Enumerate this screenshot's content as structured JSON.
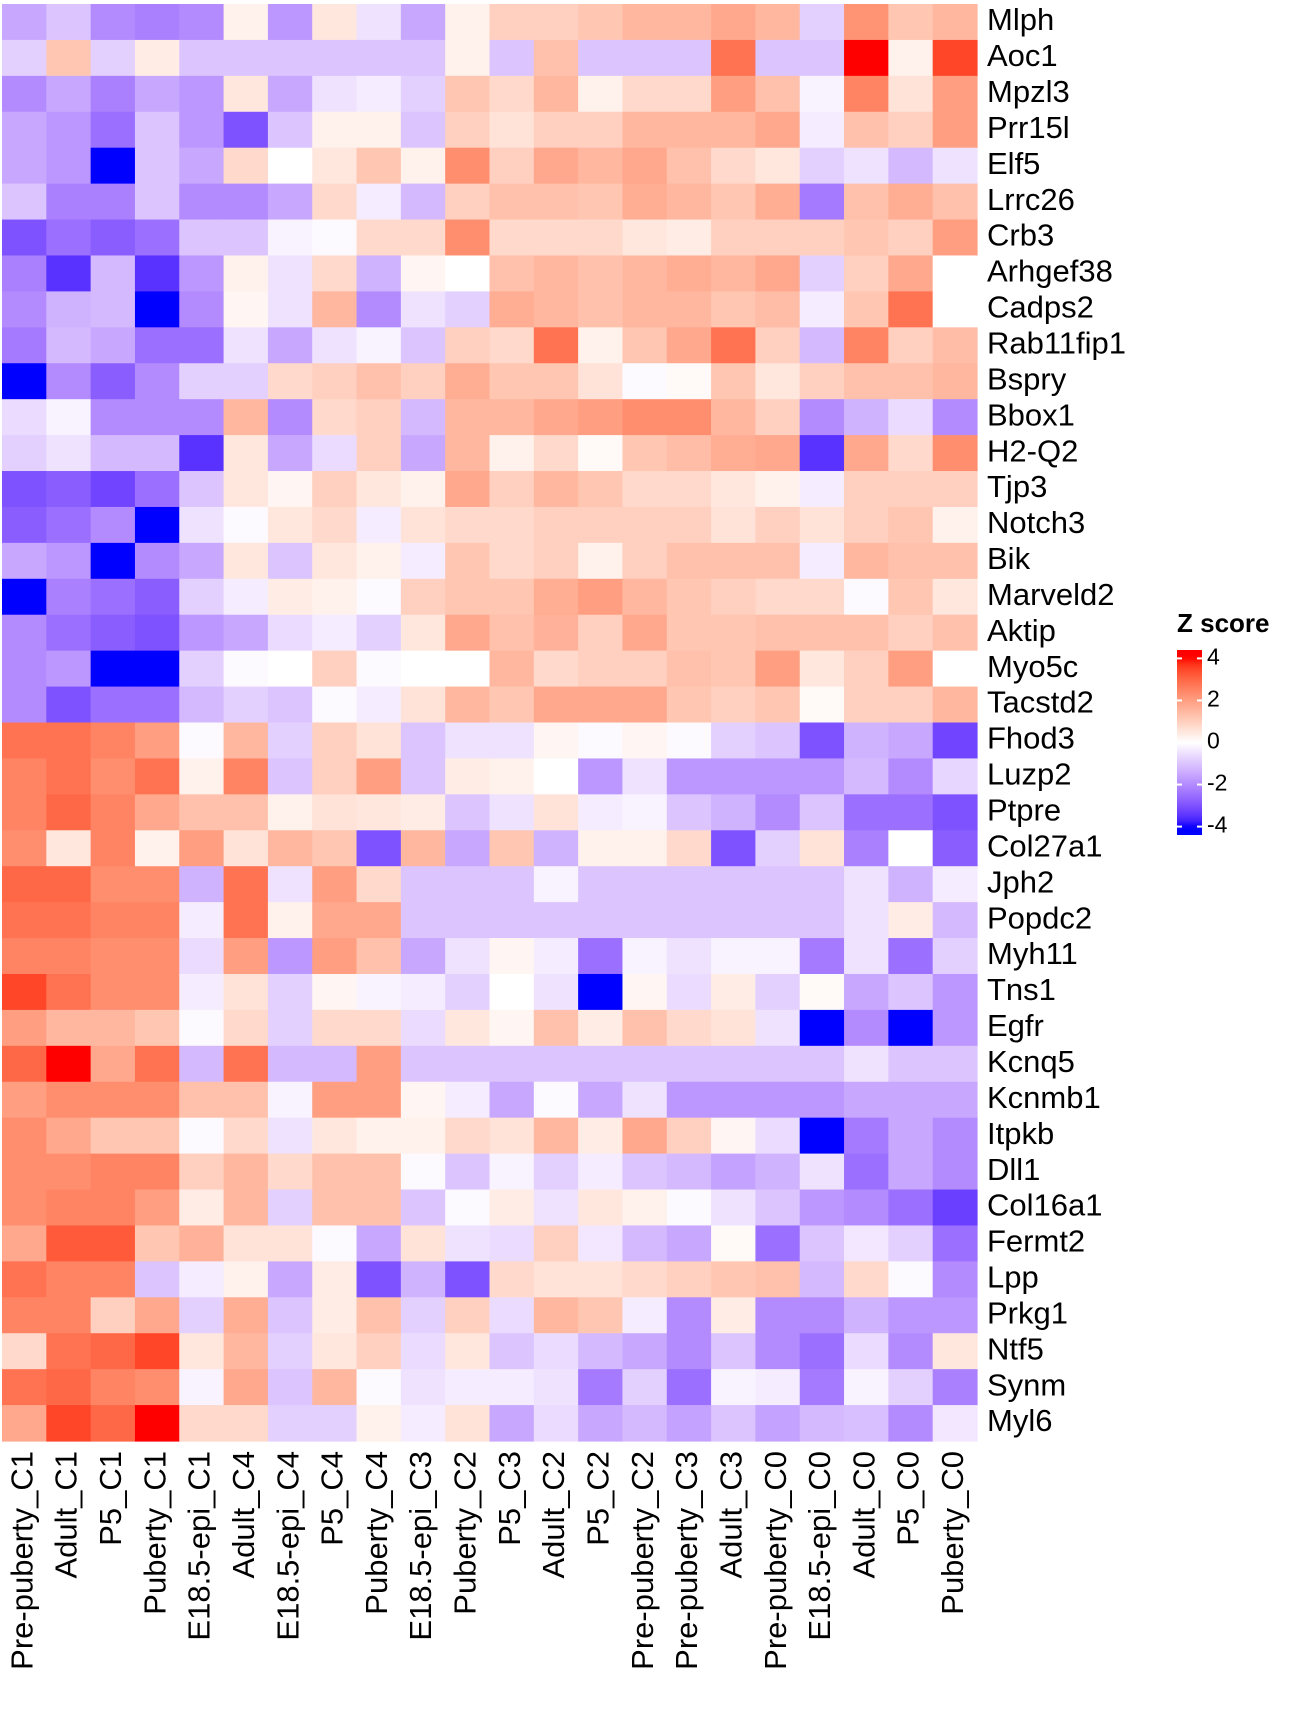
{
  "chart_data": {
    "type": "heatmap",
    "columns": [
      "Pre-puberty_C1",
      "Adult_C1",
      "P5_C1",
      "Puberty_C1",
      "E18.5-epi_C1",
      "Adult_C4",
      "E18.5-epi_C4",
      "P5_C4",
      "Puberty_C4",
      "E18.5-epi_C3",
      "Puberty_C2",
      "P5_C3",
      "Adult_C2",
      "P5_C2",
      "Pre-puberty_C2",
      "Pre-puberty_C3",
      "Adult_C3",
      "Pre-puberty_C0",
      "E18.5-epi_C0",
      "Adult_C0",
      "P5_C0",
      "Puberty_C0"
    ],
    "rows": [
      "Mlph",
      "Aoc1",
      "Mpzl3",
      "Prr15l",
      "Elf5",
      "Lrrc26",
      "Crb3",
      "Arhgef38",
      "Cadps2",
      "Rab11fip1",
      "Bspry",
      "Bbox1",
      "H2-Q2",
      "Tjp3",
      "Notch3",
      "Bik",
      "Marveld2",
      "Aktip",
      "Myo5c",
      "Tacstd2",
      "Fhod3",
      "Luzp2",
      "Ptpre",
      "Col27a1",
      "Jph2",
      "Popdc2",
      "Myh11",
      "Tns1",
      "Egfr",
      "Kcnq5",
      "Kcnmb1",
      "Itpkb",
      "Dll1",
      "Col16a1",
      "Fermt2",
      "Lpp",
      "Prkg1",
      "Ntf5",
      "Synm",
      "Myl6"
    ],
    "values": [
      [
        -1.5,
        -1,
        -2,
        -2.2,
        -2,
        0.3,
        -1.8,
        0.5,
        -0.5,
        -1.5,
        0.3,
        1,
        1,
        1.2,
        1.5,
        1.5,
        1.8,
        1.5,
        -0.8,
        2.2,
        1.2,
        1.5
      ],
      [
        -0.8,
        1.2,
        -0.8,
        0.4,
        -1,
        -1,
        -1,
        -1,
        -1,
        -1,
        0.3,
        -1,
        1.3,
        -1,
        -1,
        -1,
        2.8,
        -1,
        -1,
        4.3,
        0.3,
        3.5
      ],
      [
        -2,
        -1.5,
        -2.2,
        -1.5,
        -1.8,
        0.5,
        -1.5,
        -0.5,
        -0.3,
        -0.8,
        1.2,
        0.8,
        1.5,
        0.3,
        0.8,
        0.8,
        2,
        1.3,
        -0.2,
        2.5,
        0.6,
        2
      ],
      [
        -1.5,
        -1.8,
        -2.5,
        -1,
        -1.8,
        -3,
        -1,
        0.3,
        0.3,
        -1,
        1,
        0.6,
        1,
        1,
        1.5,
        1.5,
        1.5,
        1.8,
        -0.3,
        1.3,
        1,
        2
      ],
      [
        -1.5,
        -1.8,
        -4.2,
        -1,
        -1.5,
        0.8,
        0,
        0.5,
        1.2,
        0.3,
        2.3,
        1,
        1.8,
        1.5,
        1.8,
        1.3,
        0.8,
        0.5,
        -0.8,
        -0.5,
        -1.2,
        -0.5
      ],
      [
        -1,
        -2.2,
        -2.2,
        -1,
        -2,
        -2,
        -1.5,
        0.8,
        -0.3,
        -1.2,
        1,
        1.3,
        1.3,
        1.2,
        1.7,
        1.5,
        1.2,
        1.7,
        -2.3,
        1.3,
        1.7,
        1.3
      ],
      [
        -3,
        -2.5,
        -2.8,
        -2.5,
        -1,
        -1,
        -0.2,
        -0.1,
        0.8,
        0.8,
        2.3,
        0.8,
        0.8,
        0.8,
        0.5,
        0.4,
        1,
        1,
        1,
        1.2,
        1,
        2
      ],
      [
        -2.2,
        -3.5,
        -1.2,
        -3.5,
        -1.8,
        0.3,
        -0.5,
        0.8,
        -1.3,
        0.2,
        0,
        1.3,
        1.5,
        1.3,
        1.5,
        1.7,
        1.5,
        1.8,
        -0.8,
        1,
        1.8,
        0
      ],
      [
        -2,
        -1.3,
        -1.2,
        -4,
        -2,
        0.2,
        -0.5,
        1.5,
        -2,
        -0.5,
        -0.8,
        1.7,
        1.5,
        1.3,
        1.5,
        1.5,
        1.2,
        1.4,
        -0.3,
        1.2,
        2.8,
        0
      ],
      [
        -2.3,
        -1.2,
        -1.5,
        -2.5,
        -2.5,
        -0.5,
        -1.5,
        -0.5,
        -0.2,
        -1,
        1,
        0.8,
        2.8,
        0.3,
        1.2,
        1.8,
        2.8,
        1,
        -1.2,
        2.5,
        1,
        1.4
      ],
      [
        -4.5,
        -2,
        -2.8,
        -2,
        -0.8,
        -0.8,
        0.8,
        1,
        1.3,
        1,
        1.7,
        1.2,
        1.2,
        0.6,
        -0.1,
        0.1,
        1.2,
        0.5,
        1,
        1.3,
        1.3,
        1.5
      ],
      [
        -0.6,
        -0.2,
        -2,
        -2,
        -2,
        1.5,
        -2,
        0.8,
        1,
        -1.2,
        1.5,
        1.5,
        1.8,
        2,
        2.3,
        2.3,
        1.5,
        1,
        -2,
        -1.3,
        -0.6,
        -2
      ],
      [
        -0.8,
        -0.5,
        -1.2,
        -1.2,
        -3.5,
        0.5,
        -1.5,
        -0.6,
        1,
        -1.5,
        1.5,
        0.3,
        0.8,
        0.1,
        1.2,
        1.4,
        1.7,
        1.8,
        -3.5,
        1.8,
        0.8,
        2.3
      ],
      [
        -3,
        -2.8,
        -3.2,
        -2.5,
        -1,
        0.5,
        0.2,
        1,
        0.5,
        0.3,
        1.8,
        1,
        1.5,
        1.2,
        0.8,
        0.8,
        0.5,
        0.3,
        -0.3,
        1,
        1,
        1
      ],
      [
        -2.8,
        -2.5,
        -2,
        -4.3,
        -0.5,
        -0.1,
        0.5,
        0.8,
        -0.3,
        0.6,
        0.8,
        0.8,
        1,
        1,
        1,
        1,
        0.6,
        1,
        0.6,
        1,
        1.2,
        0.3
      ],
      [
        -1.5,
        -1.8,
        -4.3,
        -2,
        -1.5,
        0.5,
        -1,
        0.5,
        0.3,
        -0.3,
        1.2,
        0.8,
        1,
        0.3,
        1,
        1.3,
        1.3,
        1.3,
        -0.3,
        1.5,
        1.3,
        1.3
      ],
      [
        -4.3,
        -2.2,
        -2.5,
        -2.8,
        -0.8,
        -0.3,
        0.4,
        0.3,
        -0.1,
        1,
        1.2,
        1.2,
        1.7,
        2,
        1.5,
        1.2,
        1,
        0.8,
        0.8,
        -0.1,
        1.2,
        0.5
      ],
      [
        -2,
        -2.5,
        -2.8,
        -3,
        -1.8,
        -1.5,
        -0.6,
        -0.3,
        -0.8,
        0.5,
        1.8,
        1.3,
        1.6,
        1,
        1.8,
        1.2,
        1.2,
        1.3,
        1.3,
        1.3,
        1,
        1.3
      ],
      [
        -2,
        -1.8,
        -4.5,
        -4.5,
        -0.8,
        -0.1,
        0,
        1,
        -0.1,
        0,
        0,
        1.5,
        0.8,
        1,
        1,
        1.3,
        1.2,
        2,
        0.5,
        1,
        2,
        0
      ],
      [
        -2,
        -3,
        -2.5,
        -2.5,
        -1.2,
        -0.8,
        -1,
        -0.1,
        -0.3,
        0.6,
        1.5,
        1.2,
        1.8,
        1.8,
        1.8,
        1.2,
        1,
        1.2,
        0.1,
        1,
        1,
        1.5
      ],
      [
        2.8,
        2.8,
        2.5,
        2,
        -0.1,
        1.5,
        -0.8,
        1,
        0.6,
        -1,
        -0.5,
        -0.5,
        0.2,
        -0.1,
        0.2,
        -0.1,
        -0.8,
        -1,
        -3,
        -1.3,
        -1.5,
        -3.2
      ],
      [
        2.5,
        2.8,
        2.3,
        2.8,
        0.3,
        2.5,
        -1,
        1,
        2,
        -1,
        0.4,
        0.3,
        0,
        -1.8,
        -0.5,
        -1.8,
        -1.8,
        -1.8,
        -1.8,
        -1.2,
        -2,
        -0.7
      ],
      [
        2.5,
        3,
        2.5,
        1.8,
        1.3,
        1.3,
        0.3,
        0.6,
        0.5,
        0.4,
        -1,
        -0.5,
        0.6,
        -0.3,
        -0.2,
        -1,
        -1.3,
        -2,
        -1,
        -2.5,
        -2.5,
        -3
      ],
      [
        2.3,
        0.5,
        2.5,
        0.3,
        2,
        0.6,
        1.5,
        1.2,
        -3,
        1.5,
        -1.5,
        1.2,
        -1.3,
        0.3,
        0.3,
        0.8,
        -3,
        -0.8,
        0.6,
        -2.2,
        0,
        -2.8
      ],
      [
        3,
        3,
        2.3,
        2.3,
        -1.3,
        2.8,
        -0.5,
        2,
        0.8,
        -1,
        -1,
        -1,
        -0.2,
        -1,
        -1,
        -1,
        -1,
        -1,
        -1,
        -0.5,
        -1.3,
        -0.3
      ],
      [
        2.8,
        2.8,
        2.5,
        2.5,
        -0.3,
        2.8,
        0.3,
        1.8,
        1.8,
        -1,
        -1,
        -1,
        -1,
        -1,
        -1,
        -1,
        -1,
        -1,
        -1,
        -0.5,
        0.4,
        -1.2
      ],
      [
        2.5,
        2.5,
        2.3,
        2.3,
        -0.6,
        2,
        -1.8,
        2,
        1.3,
        -1.5,
        -0.5,
        0.2,
        -0.3,
        -2.5,
        -0.2,
        -0.5,
        -0.2,
        -0.2,
        -2.3,
        -0.5,
        -2.5,
        -0.8
      ],
      [
        3.5,
        2.8,
        2.3,
        2.3,
        -0.3,
        0.6,
        -0.8,
        0.2,
        -0.2,
        -0.3,
        -0.8,
        0,
        -0.5,
        -4.3,
        0.2,
        -0.6,
        0.4,
        -0.8,
        0.1,
        -1.5,
        -1,
        -1.8
      ],
      [
        2,
        1.5,
        1.5,
        1.2,
        -0.1,
        0.8,
        -0.8,
        0.8,
        0.8,
        -0.6,
        0.5,
        0.2,
        1.3,
        0.4,
        1.3,
        0.8,
        0.6,
        -0.5,
        -4.3,
        -2,
        -4.3,
        -1.8
      ],
      [
        3,
        4.2,
        1.8,
        2.8,
        -1.2,
        2.8,
        -1.2,
        -1.2,
        2,
        -1,
        -1,
        -1,
        -1,
        -1,
        -1,
        -1,
        -1,
        -1,
        -1,
        -0.5,
        -1,
        -1
      ],
      [
        2,
        2.3,
        2.3,
        2.3,
        1.3,
        1.3,
        -0.2,
        2,
        2,
        0.2,
        -0.3,
        -1.5,
        -0.1,
        -1.5,
        -0.5,
        -1.8,
        -1.8,
        -1.8,
        -1.8,
        -1.5,
        -1.5,
        -1.5
      ],
      [
        2.3,
        1.8,
        1.2,
        1.2,
        -0.1,
        0.8,
        -0.5,
        0.5,
        0.3,
        0.3,
        0.8,
        0.6,
        1.5,
        0.4,
        1.8,
        1,
        0.2,
        -0.6,
        -4.3,
        -2.3,
        -1.5,
        -2
      ],
      [
        2.3,
        2.3,
        2.5,
        2.5,
        1,
        1.5,
        0.8,
        1.3,
        1.3,
        -0.1,
        -1,
        -0.2,
        -0.8,
        -0.3,
        -1,
        -1.2,
        -1.6,
        -1.3,
        -0.5,
        -2.5,
        -1.5,
        -2
      ],
      [
        2.3,
        2.5,
        2.5,
        2,
        0.4,
        1.5,
        -0.8,
        1.3,
        1.3,
        -1,
        -0.1,
        0.4,
        -0.5,
        0.5,
        0.3,
        -0.1,
        -0.5,
        -1,
        -1.8,
        -2,
        -2.5,
        -3.3
      ],
      [
        1.8,
        3.2,
        3.2,
        1.2,
        1.6,
        0.6,
        0.6,
        -0.1,
        -1.5,
        0.6,
        -0.5,
        -0.6,
        1,
        -0.4,
        -1.2,
        -1.5,
        0.1,
        -2.5,
        -1,
        -0.4,
        -0.8,
        -2.5
      ],
      [
        2.8,
        2.5,
        2.5,
        -1,
        -0.3,
        0.3,
        -1.5,
        0.4,
        -3,
        -1.3,
        -3,
        0.8,
        0.6,
        0.6,
        0.8,
        1,
        1.2,
        1.3,
        -1.2,
        0.8,
        -0.1,
        -2
      ],
      [
        2.5,
        2.5,
        1,
        1.8,
        -0.8,
        1.7,
        -1,
        0.4,
        1.3,
        -0.8,
        1,
        -0.6,
        1.5,
        1.2,
        -0.3,
        -2,
        0.4,
        -2,
        -2,
        -1.3,
        -1.8,
        -1.8
      ],
      [
        0.8,
        2.8,
        3,
        3.5,
        0.5,
        1.5,
        -0.8,
        0.5,
        1,
        -0.6,
        0.5,
        -1,
        -0.6,
        -1.2,
        -1.5,
        -2,
        -1,
        -2,
        -2.5,
        -0.6,
        -2,
        0.5
      ],
      [
        2.8,
        3,
        2.5,
        2.3,
        -0.2,
        1.8,
        -1,
        1.5,
        -0.1,
        -0.5,
        -0.3,
        -0.3,
        -0.5,
        -2.3,
        -0.8,
        -2.5,
        -0.2,
        -0.3,
        -2.3,
        -0.2,
        -0.8,
        -2.2
      ],
      [
        1.8,
        3.5,
        3,
        4.2,
        0.8,
        0.8,
        -0.8,
        -0.8,
        0.3,
        -0.3,
        0.6,
        -1.5,
        -0.6,
        -1.5,
        -1.2,
        -1.6,
        -1,
        -1.6,
        -1.2,
        -1.1,
        -2,
        -0.4
      ]
    ],
    "legend_title": "Z score",
    "zlim": [
      -4.4,
      4.4
    ],
    "zticks": [
      -4,
      -2,
      0,
      2,
      4
    ],
    "color_stops": [
      -4,
      0,
      4
    ],
    "colors": [
      "#0000ff",
      "#ffffff",
      "#ff0000"
    ]
  }
}
